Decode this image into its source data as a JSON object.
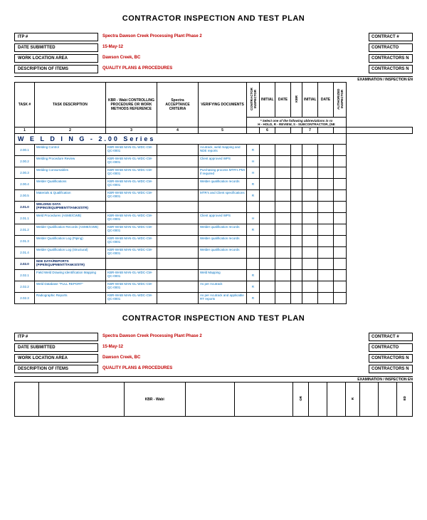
{
  "title": "CONTRACTOR INSPECTION AND TEST PLAN",
  "header": {
    "rows": [
      {
        "label": "ITP #",
        "value": "Spectra Dawson Creek Processing Plant Phase 2",
        "right": "CONTRACT #"
      },
      {
        "label": "DATE SUBMITTED",
        "value": "15-May-12",
        "right": "CONTRACTO"
      },
      {
        "label": "WORK LOCATION AREA",
        "value": "Dawson Creek, BC",
        "right": "CONTRACTORS N"
      },
      {
        "label": "DESCRIPTION OF ITEMS",
        "value": "QUALITY PLANS & PROCEDURES",
        "right": "CONTRACTORS N"
      }
    ]
  },
  "examLine": "EXAMINATION / INSPECTION EN",
  "cols": {
    "task": "TASK #",
    "desc": "TASK DESCRIPTION",
    "proc": "KBR - Wabi CONTROLLING PROCEDURE OR WORK METHODS REFERENCE",
    "acc": "Spectra ACCEPTANCE CRITERIA",
    "ver": "VERIFYING DOCUMENTS",
    "ci": "CONTRACTOR INSPECTOR",
    "ini1": "INITIAL",
    "dt1": "DATE",
    "kbr": "KBR",
    "ini2": "INITIAL",
    "dt2": "DATE",
    "ai": "AUTHORIZED INSPECTOR"
  },
  "abbrevNote1": "* Select one of the following abbreviations in ro",
  "abbrevNote2": "H - HOLD, R - REVIEW, S - SUBCONTRACTOR, (NE",
  "colnums": [
    "1",
    "2",
    "3",
    "4",
    "5",
    "",
    "6",
    "",
    "",
    "7",
    "",
    "",
    ""
  ],
  "section": "W E L D I N G - 2.00 Series",
  "stdProc": "KBR-WABI MAN-GL-WDC-CM-QC-0001",
  "rows": [
    {
      "id": "2.00.1",
      "desc": "Welding Control",
      "ver": "Acutrack, weld mapping and NDE reports",
      "c1": "R"
    },
    {
      "id": "2.00.2",
      "desc": "Welding Procedure Review",
      "ver": "Client approved WPS",
      "c1": "H"
    },
    {
      "id": "2.00.3",
      "desc": "Welding Consumables",
      "ver": "Purchasing process MTR's PMI if required",
      "c1": "H"
    },
    {
      "id": "2.00.4",
      "desc": "Welder Qualifications",
      "ver": "Welder qualification records",
      "c1": "R"
    },
    {
      "id": "2.00.5",
      "desc": "Materials & Qualification",
      "ver": "MTR's and Client specifications",
      "c1": "R"
    },
    {
      "id": "2.01.0",
      "desc": "WELDING DATA (PIPING/EQUIPMENT/TANKS/STR)",
      "sub": true
    },
    {
      "id": "2.01.1",
      "desc": "Weld Procedures (ASME/CWB)",
      "ver": "Client approved WPS",
      "c1": "H"
    },
    {
      "id": "2.01.2",
      "desc": "Welder Qualification Records (ASME/CWB)",
      "ver": "Welder qualification records",
      "c1": "R"
    },
    {
      "id": "2.01.3",
      "desc": "Welder Qualification Log (Piping)",
      "ver": "Welder qualification records",
      "c1": ""
    },
    {
      "id": "2.01.4",
      "desc": "Welder Qualification Log (Structural)",
      "ver": "Welder qualification records",
      "c1": ""
    },
    {
      "id": "2.02.0",
      "desc": "NDE DATA/REPORTS (PIPE/EQUIPMENT/TANKS/STR)",
      "sub": true
    },
    {
      "id": "2.02.1",
      "desc": "Field Weld Drawing Identification Mapping",
      "ver": "Weld Mapping",
      "c1": "R"
    },
    {
      "id": "2.02.2",
      "desc": "Weld Database \"FULL REPORT\"",
      "ver": "As per Acutrack",
      "c1": "R"
    },
    {
      "id": "2.02.3",
      "desc": "Radiographic Reports",
      "ver": "As per Acutrack and applicable RT reports",
      "c1": "R"
    }
  ],
  "colors": {
    "accent": "#c00000",
    "link": "#0070c0",
    "section": "#002060"
  }
}
